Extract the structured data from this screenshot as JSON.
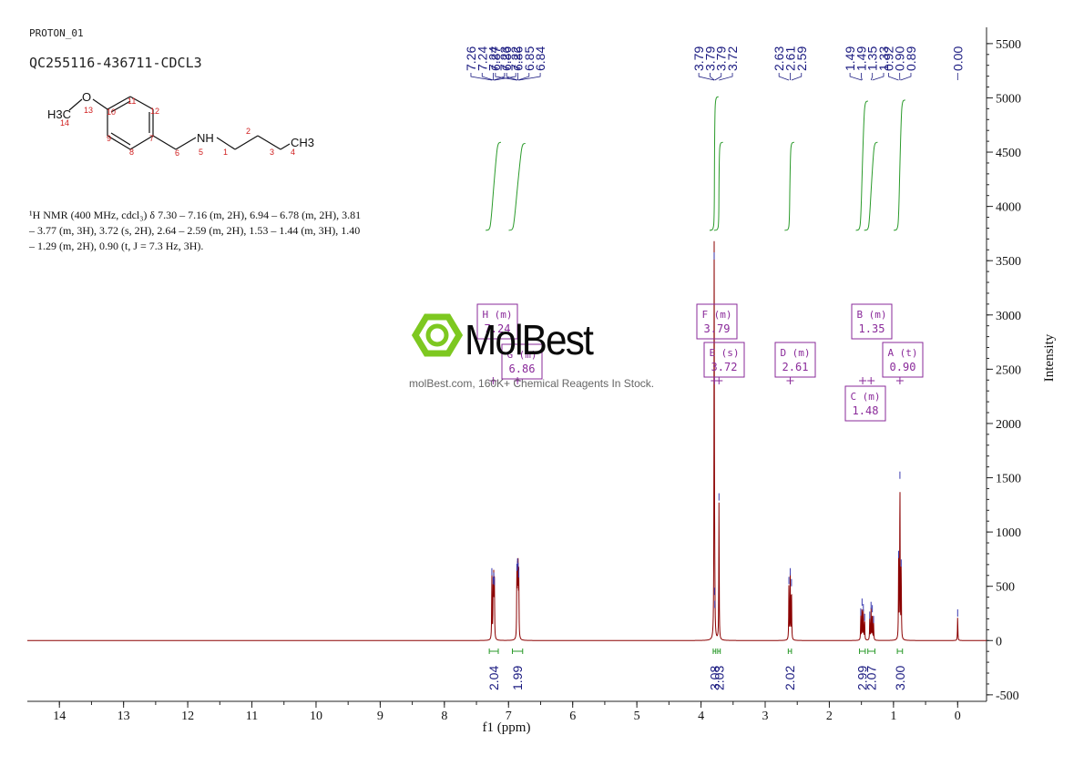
{
  "header": {
    "experiment": "PROTON_01",
    "sample_id": "QC255116-436711-CDCL3"
  },
  "structure": {
    "substituent_labels": [
      "H3C",
      "O",
      "NH",
      "CH3"
    ],
    "atom_numbers": [
      "14",
      "13",
      "10",
      "11",
      "12",
      "9",
      "8",
      "7",
      "6",
      "5",
      "1",
      "2",
      "3",
      "4"
    ]
  },
  "nmr_description": "¹H NMR (400 MHz, cdcl₃) δ 7.30 – 7.16 (m, 2H), 6.94 – 6.78 (m, 2H), 3.81 – 3.77 (m, 3H), 3.72 (s, 2H), 2.64 – 2.59 (m, 2H), 1.53 – 1.44 (m, 3H), 1.40 – 1.29 (m, 2H), 0.90 (t, J = 7.3 Hz, 3H).",
  "watermark": {
    "brand": "MolBest",
    "subtitle": "molBest.com, 160K+ Chemical Reagents In Stock."
  },
  "colors": {
    "spectrum": "#8b0000",
    "peak_labels": "#1a1a80",
    "integral": "#2a9a2a",
    "multiplet_box": "#8a2a9a",
    "axis": "#222222",
    "logo_green": "#7dc820"
  },
  "chart_data": {
    "type": "line",
    "x_axis": {
      "label": "f1 (ppm)",
      "range": [
        14.5,
        -0.45
      ],
      "ticks": [
        "14",
        "13",
        "12",
        "11",
        "10",
        "9",
        "8",
        "7",
        "6",
        "5",
        "4",
        "3",
        "2",
        "1",
        "0"
      ],
      "reversed": true
    },
    "y_axis": {
      "label": "Intensity",
      "range": [
        -560,
        5650
      ],
      "ticks": [
        "5500",
        "5000",
        "4500",
        "4000",
        "3500",
        "3000",
        "2500",
        "2000",
        "1500",
        "1000",
        "500",
        "0",
        "-500"
      ],
      "position": "right"
    },
    "peaks": [
      {
        "ppm": 7.26,
        "height": 600
      },
      {
        "ppm": 7.24,
        "height": 520
      },
      {
        "ppm": 7.23,
        "height": 560
      },
      {
        "ppm": 7.22,
        "height": 510
      },
      {
        "ppm": 6.87,
        "height": 640
      },
      {
        "ppm": 6.86,
        "height": 690
      },
      {
        "ppm": 6.85,
        "height": 650
      },
      {
        "ppm": 6.84,
        "height": 580
      },
      {
        "ppm": 3.795,
        "height": 3510
      },
      {
        "ppm": 3.79,
        "height": 420
      },
      {
        "ppm": 3.785,
        "height": 300
      },
      {
        "ppm": 3.72,
        "height": 1290
      },
      {
        "ppm": 2.63,
        "height": 520
      },
      {
        "ppm": 2.61,
        "height": 600
      },
      {
        "ppm": 2.59,
        "height": 500
      },
      {
        "ppm": 1.51,
        "height": 230
      },
      {
        "ppm": 1.49,
        "height": 320
      },
      {
        "ppm": 1.47,
        "height": 270
      },
      {
        "ppm": 1.45,
        "height": 180
      },
      {
        "ppm": 1.37,
        "height": 200
      },
      {
        "ppm": 1.35,
        "height": 290
      },
      {
        "ppm": 1.33,
        "height": 260
      },
      {
        "ppm": 1.31,
        "height": 160
      },
      {
        "ppm": 0.92,
        "height": 760
      },
      {
        "ppm": 0.9,
        "height": 1490
      },
      {
        "ppm": 0.88,
        "height": 680
      },
      {
        "ppm": 0.0,
        "height": 220
      }
    ],
    "peak_labels": [
      {
        "text": "7.26",
        "ppm": 7.26
      },
      {
        "text": "7.24",
        "ppm": 7.24
      },
      {
        "text": "7.24",
        "ppm": 7.235
      },
      {
        "text": "7.23",
        "ppm": 7.23
      },
      {
        "text": "7.22",
        "ppm": 7.22
      },
      {
        "text": "6.87",
        "ppm": 6.87
      },
      {
        "text": "6.86",
        "ppm": 6.86
      },
      {
        "text": "6.86",
        "ppm": 6.855
      },
      {
        "text": "6.85",
        "ppm": 6.85
      },
      {
        "text": "6.84",
        "ppm": 6.84
      },
      {
        "text": "3.79",
        "ppm": 3.795
      },
      {
        "text": "3.79",
        "ppm": 3.79
      },
      {
        "text": "3.79",
        "ppm": 3.785
      },
      {
        "text": "3.72",
        "ppm": 3.72
      },
      {
        "text": "2.63",
        "ppm": 2.63
      },
      {
        "text": "2.61",
        "ppm": 2.61
      },
      {
        "text": "2.59",
        "ppm": 2.59
      },
      {
        "text": "1.49",
        "ppm": 1.495
      },
      {
        "text": "1.49",
        "ppm": 1.49
      },
      {
        "text": "1.35",
        "ppm": 1.35
      },
      {
        "text": "1.33",
        "ppm": 1.33
      },
      {
        "text": "0.92",
        "ppm": 0.92
      },
      {
        "text": "0.90",
        "ppm": 0.9
      },
      {
        "text": "0.89",
        "ppm": 0.89
      },
      {
        "text": "0.00",
        "ppm": 0.0
      }
    ],
    "integrals": [
      {
        "value": "2.04",
        "from": 7.3,
        "to": 7.16
      },
      {
        "value": "1.99",
        "from": 6.94,
        "to": 6.78
      },
      {
        "value": "3.08",
        "from": 3.81,
        "to": 3.77
      },
      {
        "value": "2.03",
        "from": 3.74,
        "to": 3.7
      },
      {
        "value": "2.02",
        "from": 2.64,
        "to": 2.59
      },
      {
        "value": "2.99",
        "from": 1.53,
        "to": 1.44
      },
      {
        "value": "2.07",
        "from": 1.4,
        "to": 1.29
      },
      {
        "value": "3.00",
        "from": 0.94,
        "to": 0.86
      }
    ],
    "multiplets": [
      {
        "letter": "H",
        "mult": "m",
        "shift": "7.24",
        "ppm": 7.24
      },
      {
        "letter": "G",
        "mult": "m",
        "shift": "6.86",
        "ppm": 6.86
      },
      {
        "letter": "F",
        "mult": "m",
        "shift": "3.79",
        "ppm": 3.79
      },
      {
        "letter": "E",
        "mult": "s",
        "shift": "3.72",
        "ppm": 3.72
      },
      {
        "letter": "D",
        "mult": "m",
        "shift": "2.61",
        "ppm": 2.61
      },
      {
        "letter": "B",
        "mult": "m",
        "shift": "1.35",
        "ppm": 1.35
      },
      {
        "letter": "C",
        "mult": "m",
        "shift": "1.48",
        "ppm": 1.48
      },
      {
        "letter": "A",
        "mult": "t",
        "shift": "0.90",
        "ppm": 0.9
      }
    ]
  }
}
